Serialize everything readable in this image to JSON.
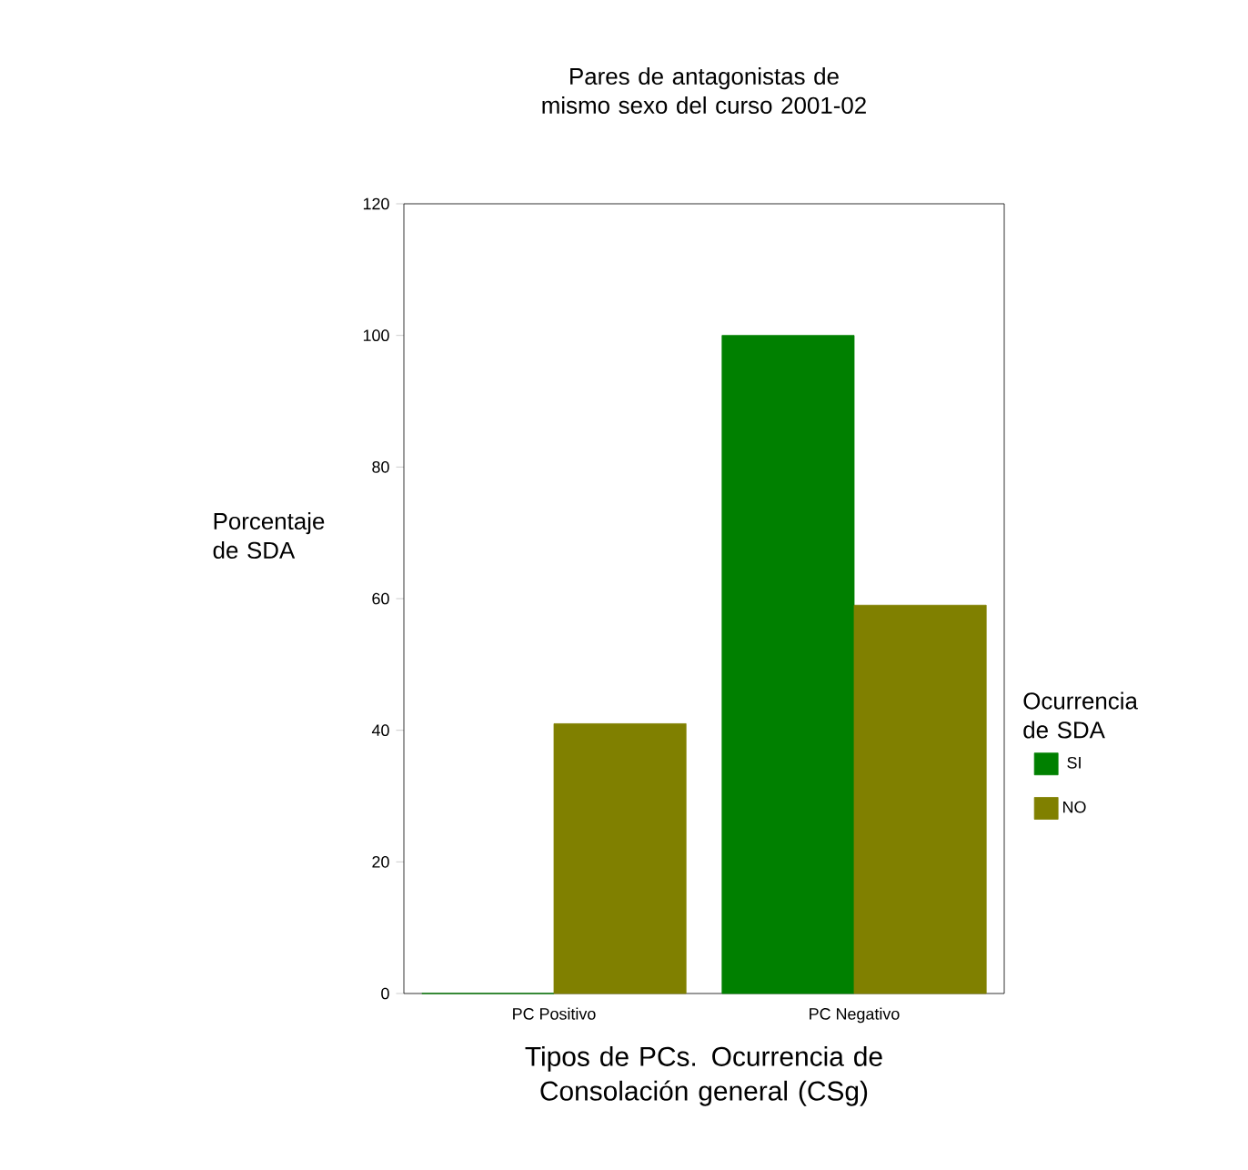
{
  "chart_data": {
    "type": "bar",
    "title": "Pares de antagonistas de mismo sexo del curso 2001-02",
    "xlabel": "Tipos de PCs. Ocurrencia de Consolación general (CSg)",
    "ylabel": "Porcentaje de SDA",
    "legend_title": "Ocurrencia de SDA",
    "categories": [
      "PC Positivo",
      "PC Negativo"
    ],
    "series": [
      {
        "name": "SI",
        "color": "#008000",
        "values": [
          0,
          100
        ]
      },
      {
        "name": "NO",
        "color": "#808000",
        "values": [
          41,
          59
        ]
      }
    ],
    "ylim": [
      0,
      120
    ],
    "yticks": [
      0,
      20,
      40,
      60,
      80,
      100,
      120
    ],
    "grid": false,
    "legend": "right"
  }
}
